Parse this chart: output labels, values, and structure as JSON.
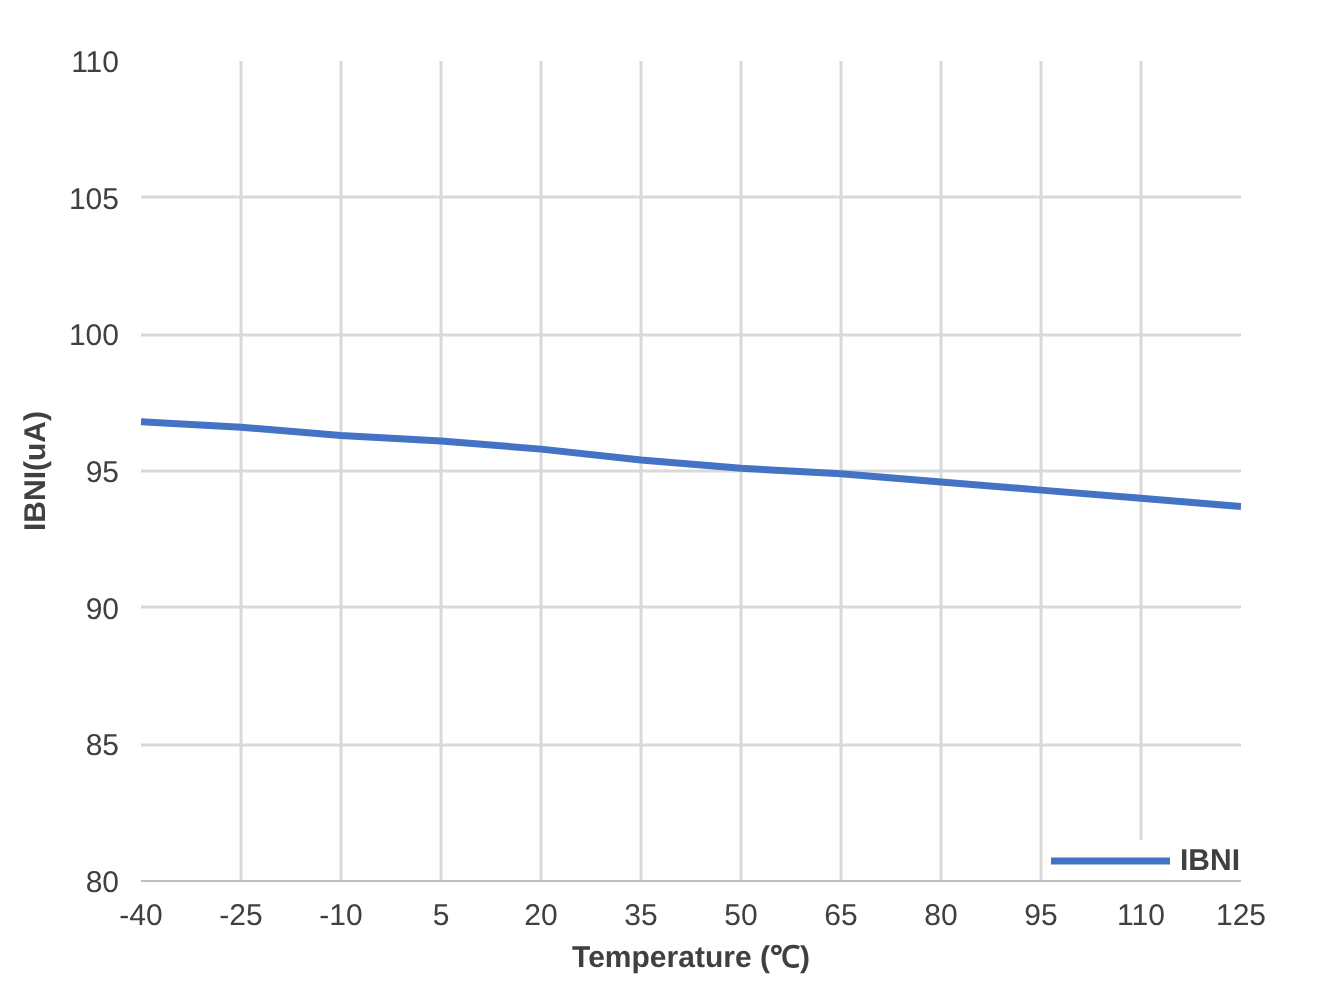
{
  "chart_data": {
    "type": "line",
    "xlabel": "Temperature (℃)",
    "ylabel": "IBNI(uA)",
    "categories": [
      "-40",
      "-25",
      "-10",
      "5",
      "20",
      "35",
      "50",
      "65",
      "80",
      "95",
      "110",
      "125"
    ],
    "series": [
      {
        "name": "IBNI",
        "color": "#4472c4",
        "values": [
          96.8,
          96.6,
          96.3,
          96.1,
          95.8,
          95.4,
          95.1,
          94.9,
          94.6,
          94.3,
          94.0,
          93.7
        ]
      }
    ],
    "ylim": [
      80,
      110
    ],
    "yticks": [
      80,
      85,
      90,
      95,
      100,
      105,
      110
    ],
    "grid": true,
    "legend": "bottom right",
    "marker": "none",
    "line_style": "solid"
  }
}
